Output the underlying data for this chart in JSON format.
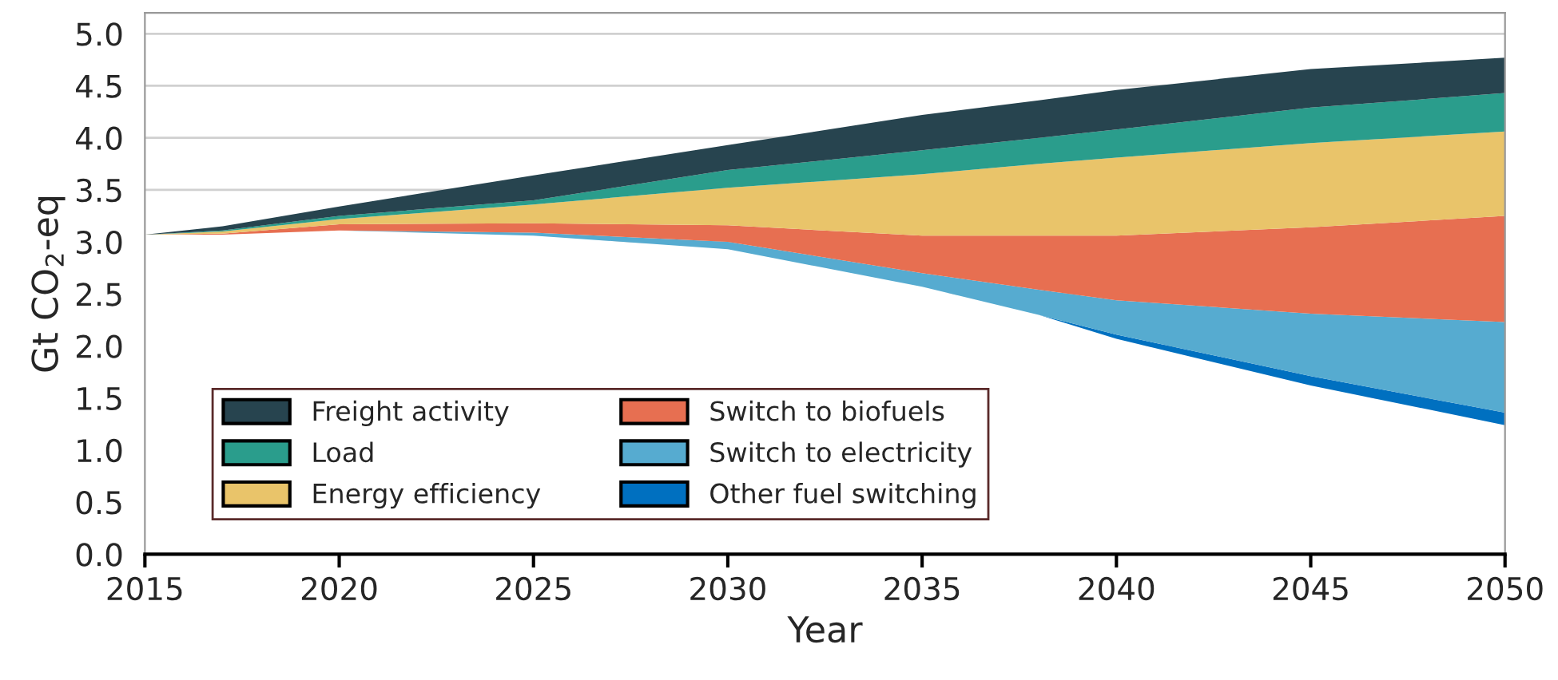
{
  "chart_data": {
    "type": "area",
    "stacked": true,
    "xlabel": "Year",
    "ylabel": "Gt CO$_{2}$-eq",
    "x": [
      2015,
      2017,
      2020,
      2025,
      2030,
      2035,
      2038,
      2040,
      2045,
      2050
    ],
    "xlim": [
      2015,
      2050
    ],
    "xticks": [
      2015,
      2020,
      2025,
      2030,
      2035,
      2040,
      2045,
      2050
    ],
    "ylim": [
      0,
      5.2
    ],
    "yticks": [
      {
        "value": 0,
        "label": "0.0"
      },
      {
        "value": 0.5,
        "label": "0.5"
      },
      {
        "value": 1,
        "label": "1.0"
      },
      {
        "value": 1.5,
        "label": "1.5"
      },
      {
        "value": 2,
        "label": "2.0"
      },
      {
        "value": 2.5,
        "label": "2.5"
      },
      {
        "value": 3,
        "label": "3.0"
      },
      {
        "value": 3.5,
        "label": "3.5"
      },
      {
        "value": 4,
        "label": "4.0"
      },
      {
        "value": 4.5,
        "label": "4.5"
      },
      {
        "value": 5,
        "label": "5.0"
      }
    ],
    "grid": "y",
    "legend": "bottom left",
    "series": [
      {
        "color": "#ffffff",
        "values": [
          3.07,
          3.07,
          3.11,
          3.06,
          2.93,
          2.57,
          2.3,
          2.07,
          1.62,
          1.24
        ]
      },
      {
        "name": "Other fuel switching",
        "color": "#0070c0",
        "values": [
          0,
          0,
          0,
          0,
          0,
          0,
          0,
          0.04,
          0.09,
          0.12
        ]
      },
      {
        "name": "Switch to electricity",
        "color": "#56abd0",
        "values": [
          0,
          0,
          0,
          0.03,
          0.07,
          0.13,
          0.24,
          0.33,
          0.6,
          0.87
        ]
      },
      {
        "name": "Switch to biofuels",
        "color": "#e76f51",
        "values": [
          0,
          0.01,
          0.06,
          0.09,
          0.16,
          0.36,
          0.52,
          0.62,
          0.83,
          1.02
        ]
      },
      {
        "name": "Energy efficiency",
        "color": "#e9c46a",
        "values": [
          0,
          0.02,
          0.05,
          0.18,
          0.36,
          0.59,
          0.69,
          0.75,
          0.81,
          0.81
        ]
      },
      {
        "name": "Load",
        "color": "#2a9d8c",
        "values": [
          0,
          0.01,
          0.03,
          0.04,
          0.17,
          0.23,
          0.25,
          0.27,
          0.34,
          0.37
        ]
      },
      {
        "name": "Freight activity",
        "color": "#27444f",
        "values": [
          0,
          0.04,
          0.09,
          0.24,
          0.24,
          0.34,
          0.36,
          0.38,
          0.37,
          0.34
        ]
      }
    ]
  }
}
